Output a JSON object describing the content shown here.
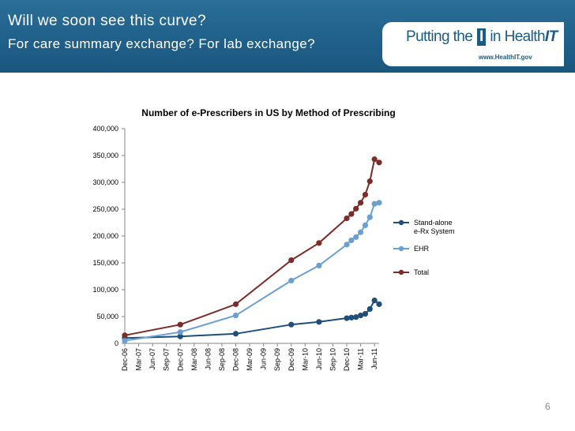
{
  "slide": {
    "title_line1": "Will we soon see this curve?",
    "title_line2": "For care summary exchange? For lab exchange?",
    "logo_prefix": "Putting the",
    "logo_i": "I",
    "logo_in": "in",
    "logo_health": "Health",
    "logo_it": "IT",
    "logo_url": "www.HealthIT.gov",
    "page_number": "6",
    "colors": {
      "banner": "#1f5f88",
      "standalone": "#1f4e79",
      "ehr": "#6a9fd4",
      "total": "#7b2b28"
    }
  },
  "chart_data": {
    "type": "line",
    "title": "Number of e-Prescribers in US by Method of Prescribing",
    "xlabel": "",
    "ylabel": "",
    "ylim": [
      0,
      400000
    ],
    "yticks": [
      0,
      50000,
      100000,
      150000,
      200000,
      250000,
      300000,
      350000,
      400000
    ],
    "ytick_labels": [
      "0",
      "50,000",
      "100,000",
      "150,000",
      "200,000",
      "250,000",
      "300,000",
      "350,000",
      "400,000"
    ],
    "xtick_labels": [
      "Dec-06",
      "Mar-07",
      "Jun-07",
      "Sep-07",
      "Dec-07",
      "Mar-08",
      "Jun-08",
      "Sep-08",
      "Dec-08",
      "Mar-09",
      "Jun-09",
      "Sep-09",
      "Dec-09",
      "Mar-10",
      "Jun-10",
      "Sep-10",
      "Dec-10",
      "Mar-11",
      "Jun-11"
    ],
    "legend_position": "right",
    "series": [
      {
        "name": "Stand-alone e-Rx System",
        "legend_lines": [
          "Stand-alone",
          "e-Rx System"
        ],
        "x": [
          0,
          12,
          24,
          36,
          42,
          48,
          49,
          50,
          51,
          52,
          53,
          54,
          55
        ],
        "values": [
          10000,
          13000,
          18000,
          35000,
          40000,
          47000,
          48000,
          49000,
          52000,
          55000,
          64000,
          80000,
          73000
        ]
      },
      {
        "name": "EHR",
        "legend_lines": [
          "EHR"
        ],
        "x": [
          0,
          12,
          24,
          36,
          42,
          48,
          49,
          50,
          51,
          52,
          53,
          54,
          55
        ],
        "values": [
          5000,
          21000,
          52000,
          117000,
          145000,
          184000,
          192000,
          198000,
          207000,
          220000,
          235000,
          260000,
          262000
        ]
      },
      {
        "name": "Total",
        "legend_lines": [
          "Total"
        ],
        "x": [
          0,
          12,
          24,
          36,
          42,
          48,
          49,
          50,
          51,
          52,
          53,
          54,
          55
        ],
        "values": [
          15000,
          35000,
          73000,
          155000,
          187000,
          233000,
          241000,
          251000,
          262000,
          277000,
          302000,
          343000,
          337000
        ]
      }
    ]
  }
}
